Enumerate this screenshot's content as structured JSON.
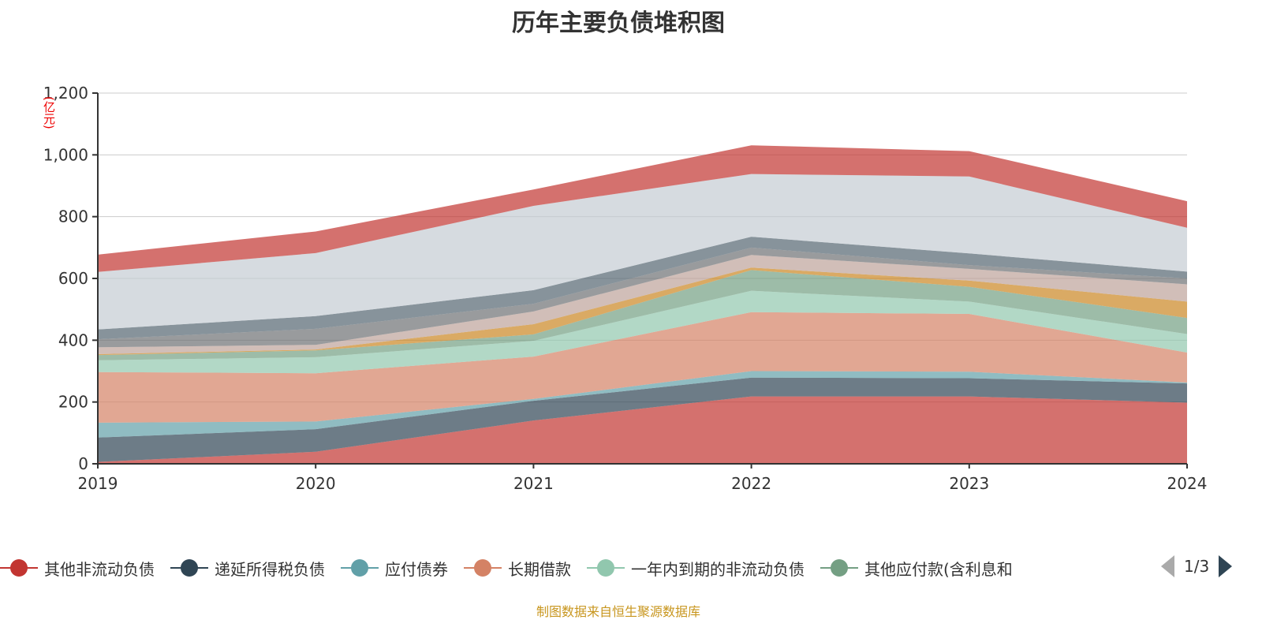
{
  "chart_data": {
    "type": "area",
    "stacked": true,
    "title": "历年主要负债堆积图",
    "ylabel": "(亿元)",
    "xlabel": "",
    "categories": [
      "2019",
      "2020",
      "2021",
      "2022",
      "2023",
      "2024"
    ],
    "ylim": [
      0,
      1200
    ],
    "yticks": [
      "0",
      "200",
      "400",
      "600",
      "800",
      "1,000",
      "1,200"
    ],
    "grid": true,
    "legend_position": "bottom",
    "series": [
      {
        "name": "其他非流动负债",
        "color": "#c23531",
        "values": [
          6,
          39,
          140,
          218,
          218,
          198
        ]
      },
      {
        "name": "递延所得税负债",
        "color": "#2f4554",
        "values": [
          79,
          73,
          64,
          61,
          59,
          62
        ]
      },
      {
        "name": "应付债券",
        "color": "#61a0a8",
        "values": [
          48,
          25,
          6,
          21,
          21,
          3
        ]
      },
      {
        "name": "长期借款",
        "color": "#d48265",
        "values": [
          164,
          156,
          137,
          191,
          187,
          97
        ]
      },
      {
        "name": "一年内到期的非流动负债",
        "color": "#91c7ae",
        "values": [
          38,
          52,
          51,
          69,
          40,
          60
        ]
      },
      {
        "name": "其他应付款(含利息和",
        "color": "#749f83",
        "values": [
          17,
          22,
          21,
          67,
          48,
          52
        ]
      },
      {
        "color": "#ca8622",
        "values": [
          3,
          3,
          33,
          8,
          20,
          53
        ]
      },
      {
        "color": "#bda29a",
        "values": [
          22,
          15,
          41,
          41,
          38,
          56
        ]
      },
      {
        "color": "#6e7074",
        "values": [
          26,
          52,
          25,
          24,
          12,
          19
        ]
      },
      {
        "color": "#546570",
        "values": [
          32,
          41,
          44,
          35,
          38,
          22
        ]
      },
      {
        "color": "#c4ccd3",
        "values": [
          186,
          204,
          273,
          203,
          249,
          142
        ]
      },
      {
        "color": "#c23531",
        "values": [
          56,
          70,
          53,
          93,
          82,
          86
        ]
      }
    ]
  },
  "legend": {
    "page": "1/3"
  },
  "source": "制图数据来自恒生聚源数据库"
}
